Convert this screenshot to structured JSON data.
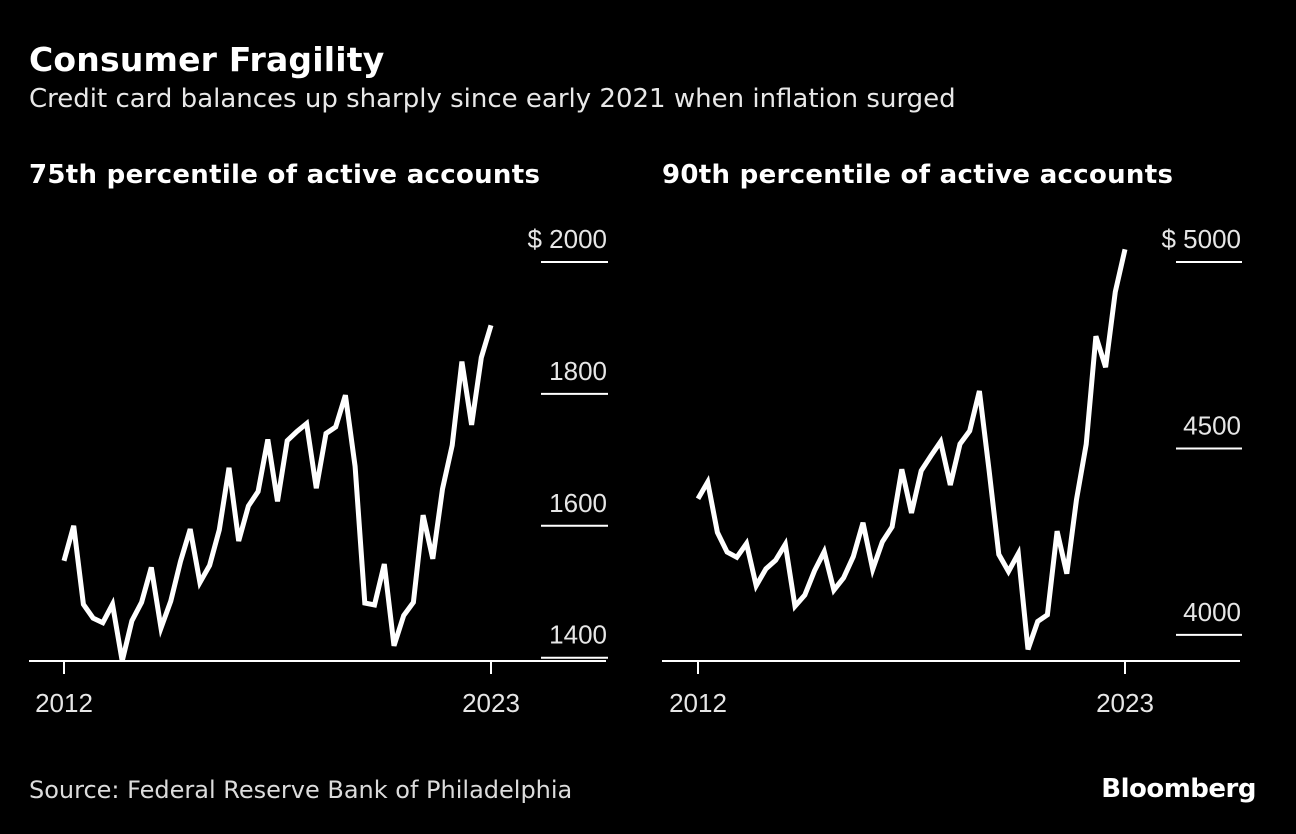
{
  "title": "Consumer Fragility",
  "subtitle": "Credit card balances up sharply since early 2021 when inflation surged",
  "source": "Source: Federal Reserve Bank of Philadelphia",
  "brand": "Bloomberg",
  "colors": {
    "background": "#000000",
    "line": "#ffffff",
    "text": "#ffffff"
  },
  "chart_data": [
    {
      "type": "line",
      "title": "75th percentile of active accounts",
      "x_tick_labels": [
        "2012",
        "2023"
      ],
      "x_range": [
        2012.0,
        2023.25
      ],
      "y_tick_labels": [
        "$ 2000",
        "1800",
        "1600",
        "1400"
      ],
      "y_ticks": [
        2000,
        1800,
        1600,
        1400
      ],
      "ylim": [
        1395,
        2000
      ],
      "grid": true,
      "series": [
        {
          "x": [
            2012.0,
            2012.25,
            2012.5,
            2012.75,
            2013.0,
            2013.25,
            2013.5,
            2013.75,
            2014.0,
            2014.25,
            2014.5,
            2014.75,
            2015.0,
            2015.25,
            2015.5,
            2015.75,
            2016.0,
            2016.25,
            2016.5,
            2016.75,
            2017.0,
            2017.25,
            2017.5,
            2017.75,
            2018.0,
            2018.25,
            2018.5,
            2018.75,
            2019.0,
            2019.25,
            2019.5,
            2019.75,
            2020.0,
            2020.25,
            2020.5,
            2020.75,
            2021.0,
            2021.25,
            2021.5,
            2021.75,
            2022.0,
            2022.25,
            2022.5,
            2022.75,
            2023.0
          ],
          "values": [
            1547,
            1600,
            1481,
            1460,
            1453,
            1481,
            1395,
            1456,
            1484,
            1537,
            1445,
            1486,
            1546,
            1595,
            1514,
            1540,
            1594,
            1688,
            1577,
            1630,
            1652,
            1731,
            1637,
            1729,
            1743,
            1755,
            1657,
            1740,
            1750,
            1798,
            1690,
            1483,
            1480,
            1542,
            1418,
            1464,
            1484,
            1616,
            1550,
            1656,
            1722,
            1849,
            1753,
            1855,
            1904
          ]
        }
      ]
    },
    {
      "type": "line",
      "title": "90th percentile of active accounts",
      "x_tick_labels": [
        "2012",
        "2023"
      ],
      "x_range": [
        2012.0,
        2023.25
      ],
      "y_tick_labels": [
        "$ 5000",
        "4500",
        "4000"
      ],
      "y_ticks": [
        5000,
        4500,
        4000
      ],
      "ylim": [
        3930,
        5000
      ],
      "grid": true,
      "series": [
        {
          "x": [
            2012.0,
            2012.25,
            2012.5,
            2012.75,
            2013.0,
            2013.25,
            2013.5,
            2013.75,
            2014.0,
            2014.25,
            2014.5,
            2014.75,
            2015.0,
            2015.25,
            2015.5,
            2015.75,
            2016.0,
            2016.25,
            2016.5,
            2016.75,
            2017.0,
            2017.25,
            2017.5,
            2017.75,
            2018.0,
            2018.25,
            2018.5,
            2018.75,
            2019.0,
            2019.25,
            2019.5,
            2019.75,
            2020.0,
            2020.25,
            2020.5,
            2020.75,
            2021.0,
            2021.25,
            2021.5,
            2021.75,
            2022.0,
            2022.25,
            2022.5,
            2022.75,
            2023.0
          ],
          "values": [
            4365,
            4410,
            4275,
            4222,
            4208,
            4245,
            4132,
            4177,
            4200,
            4243,
            4077,
            4107,
            4172,
            4223,
            4120,
            4153,
            4210,
            4301,
            4176,
            4250,
            4290,
            4444,
            4327,
            4440,
            4480,
            4518,
            4402,
            4512,
            4547,
            4654,
            4441,
            4216,
            4170,
            4218,
            3961,
            4036,
            4054,
            4278,
            4164,
            4363,
            4511,
            4801,
            4718,
            4920,
            5034
          ]
        }
      ]
    }
  ]
}
